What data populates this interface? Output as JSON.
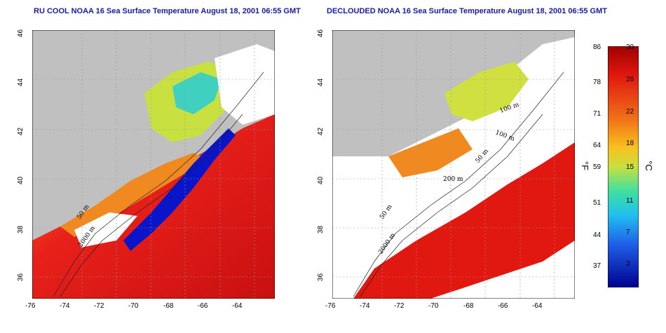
{
  "titles": {
    "left": "RU COOL NOAA 16 Sea Surface Temperature August 18, 2001 06:55 GMT",
    "right": "DECLOUDED NOAA 16 Sea Surface Temperature August 18, 2001 06:55 GMT"
  },
  "axes": {
    "x_ticks": [
      "-76",
      "-74",
      "-72",
      "-70",
      "-68",
      "-66",
      "-64"
    ],
    "y_ticks": [
      "46",
      "44",
      "42",
      "40",
      "38",
      "36"
    ]
  },
  "contour_labels": {
    "left": [
      "50 m",
      "200 m",
      "2000 m"
    ],
    "right": [
      "100 m",
      "100 m",
      "50 m",
      "200 m",
      "50 m",
      "2000 m"
    ]
  },
  "colorbar": {
    "fahrenheit": [
      "86",
      "78",
      "71",
      "64",
      "59",
      "51",
      "44",
      "37"
    ],
    "celsius": [
      "30",
      "26",
      "22",
      "18",
      "15",
      "11",
      "7",
      "3"
    ],
    "unit_f": "°F",
    "unit_c": "°C"
  },
  "colors": {
    "land": "#c0c0c0",
    "cloud": "#ffffff",
    "cold": "#0a14c8",
    "warm": "#e01810",
    "title": "#1a1aa8"
  }
}
